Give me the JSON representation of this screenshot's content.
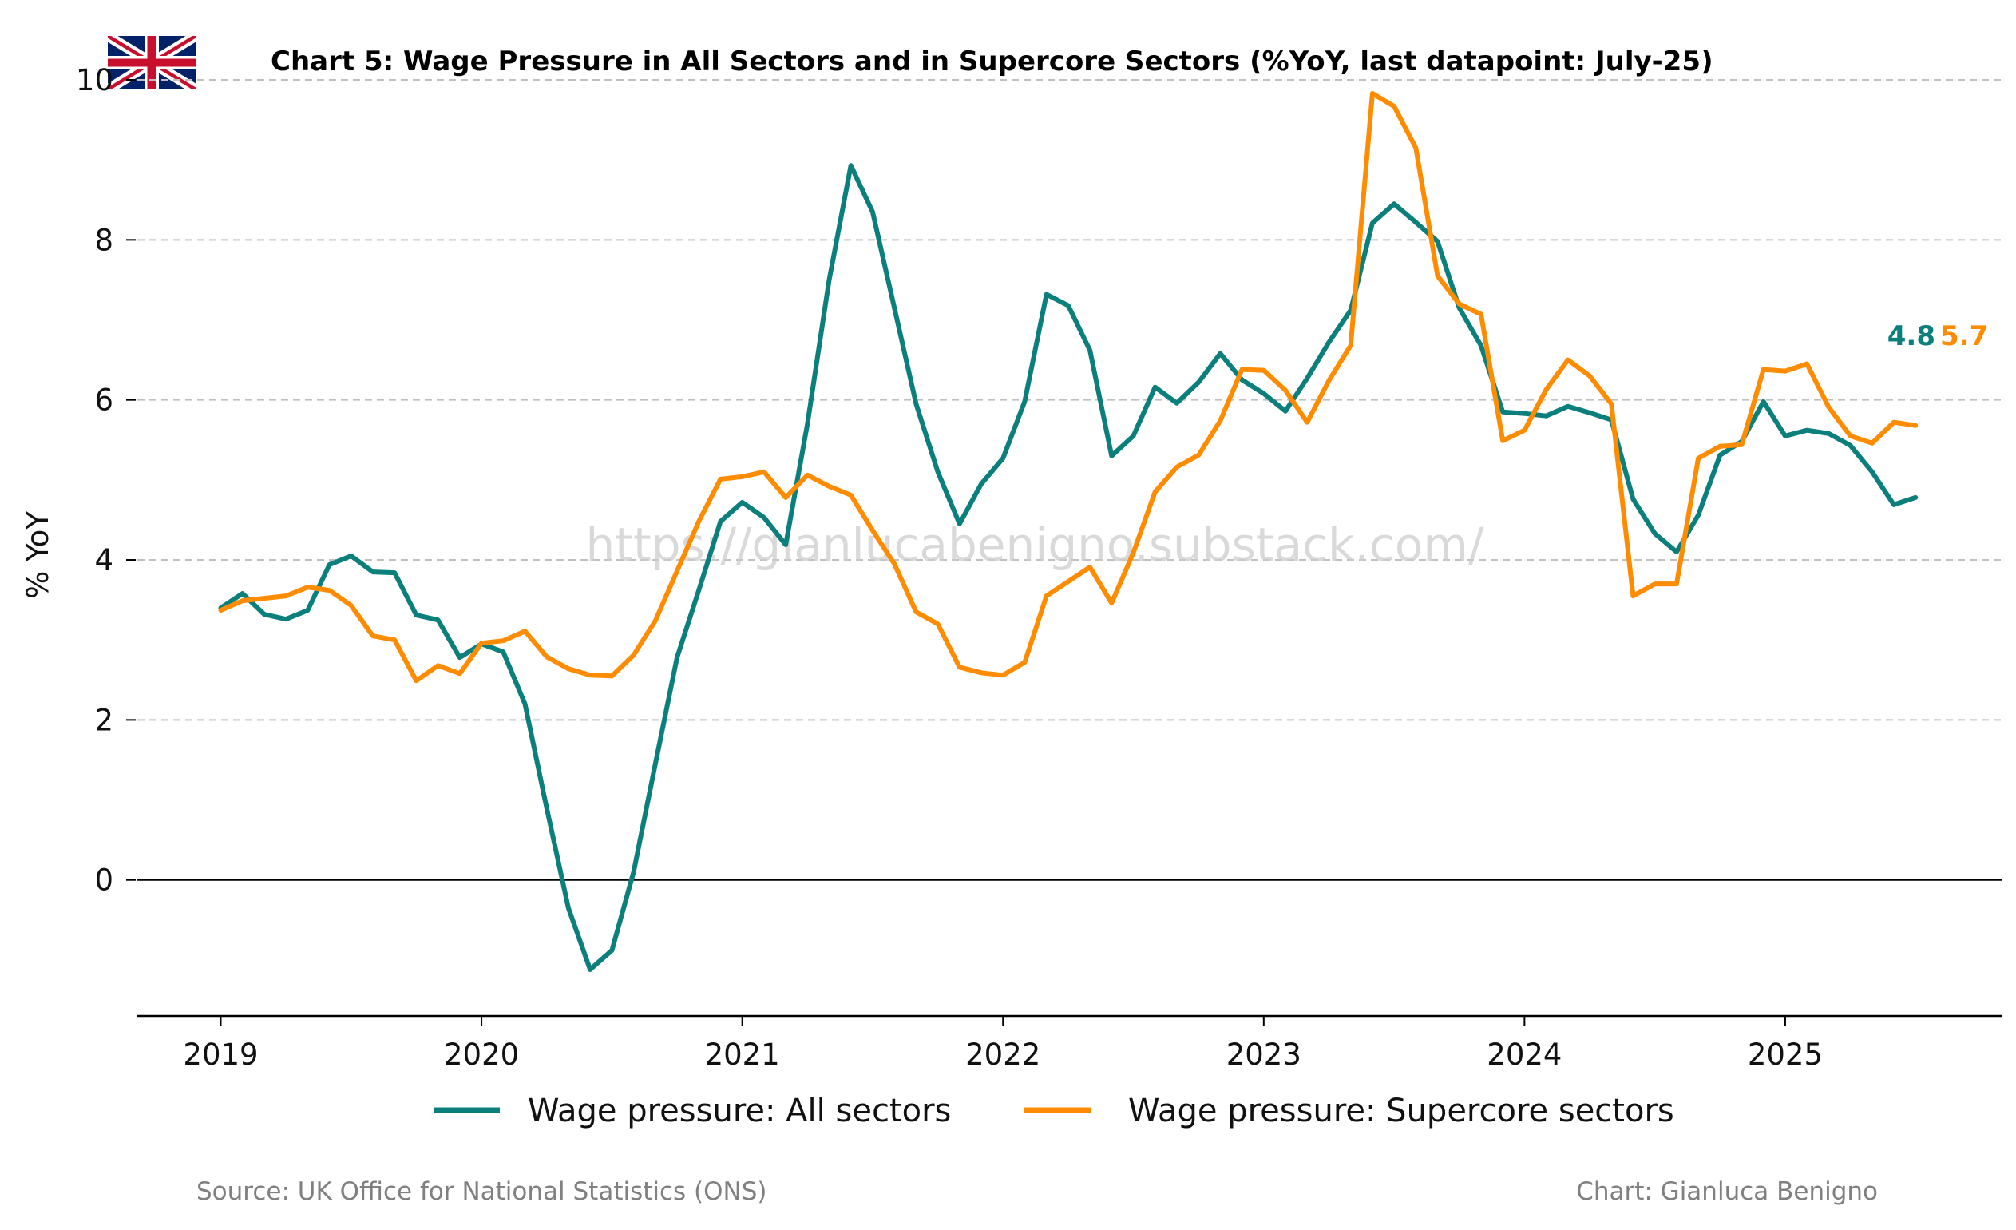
{
  "chart_data": {
    "type": "line",
    "title": "Chart 5: Wage Pressure in All Sectors and in Supercore Sectors (%YoY, last datapoint: July-25)",
    "ylabel": "% YoY",
    "xlabel": "",
    "ylim": [
      -1.7,
      10
    ],
    "yticks": [
      0,
      2,
      4,
      6,
      8,
      10
    ],
    "ytick_labels": [
      "0",
      "2",
      "4",
      "6",
      "8",
      "10"
    ],
    "xlim": [
      2018.68,
      2025.83
    ],
    "xticks": [
      2019,
      2020,
      2021,
      2022,
      2023,
      2024,
      2025
    ],
    "xtick_labels": [
      "2019",
      "2020",
      "2021",
      "2022",
      "2023",
      "2024",
      "2025"
    ],
    "grid": "horizontal-dashed",
    "zero_line": true,
    "legend_position": "bottom-center",
    "x_start": "2019-01",
    "x_end": "2025-07",
    "frequency": "monthly",
    "series": [
      {
        "name": "Wage pressure: All sectors",
        "color": "#0b7f7c",
        "end_label": "4.8",
        "values": [
          3.4,
          3.58,
          3.32,
          3.26,
          3.37,
          3.94,
          4.05,
          3.85,
          3.84,
          3.31,
          3.25,
          2.78,
          2.95,
          2.85,
          2.2,
          0.9,
          -0.35,
          -1.12,
          -0.88,
          0.1,
          1.45,
          2.78,
          3.62,
          4.48,
          4.72,
          4.53,
          4.19,
          5.7,
          7.5,
          8.93,
          8.35,
          7.15,
          5.95,
          5.1,
          4.45,
          4.95,
          5.27,
          5.98,
          7.32,
          7.18,
          6.62,
          5.3,
          5.55,
          6.16,
          5.96,
          6.22,
          6.58,
          6.25,
          6.08,
          5.86,
          6.27,
          6.72,
          7.12,
          8.21,
          8.45,
          8.22,
          7.98,
          7.15,
          6.68,
          5.85,
          5.83,
          5.8,
          5.92,
          5.84,
          5.75,
          4.76,
          4.33,
          4.1,
          4.56,
          5.31,
          5.48,
          5.98,
          5.55,
          5.62,
          5.58,
          5.43,
          5.1,
          4.69,
          4.78
        ]
      },
      {
        "name": "Wage pressure: Supercore sectors",
        "color": "#ff8c00",
        "end_label": "5.7",
        "values": [
          3.37,
          3.49,
          3.52,
          3.55,
          3.66,
          3.62,
          3.43,
          3.05,
          3.0,
          2.49,
          2.68,
          2.58,
          2.96,
          2.99,
          3.11,
          2.79,
          2.64,
          2.56,
          2.55,
          2.81,
          3.24,
          3.86,
          4.48,
          5.01,
          5.04,
          5.1,
          4.78,
          5.06,
          4.92,
          4.81,
          4.37,
          3.95,
          3.35,
          3.2,
          2.66,
          2.59,
          2.56,
          2.72,
          3.55,
          3.73,
          3.91,
          3.46,
          4.09,
          4.85,
          5.16,
          5.31,
          5.74,
          6.38,
          6.37,
          6.12,
          5.72,
          6.24,
          6.68,
          9.83,
          9.67,
          9.15,
          7.55,
          7.2,
          7.07,
          5.49,
          5.62,
          6.13,
          6.5,
          6.3,
          5.95,
          3.55,
          3.7,
          3.7,
          5.27,
          5.42,
          5.44,
          6.38,
          6.36,
          6.45,
          5.91,
          5.55,
          5.46,
          5.72,
          5.68
        ]
      }
    ],
    "annotations": {
      "watermark": "https://gianlucabenigno.substack.com/",
      "source": "Source: UK Office for National Statistics (ONS)",
      "credit": "Chart: Gianluca Benigno"
    }
  },
  "flag": {
    "country": "United Kingdom",
    "icon": "uk-flag-icon",
    "colors": {
      "blue": "#012169",
      "red": "#c8102e",
      "white": "#ffffff"
    }
  },
  "colors": {
    "grid": "#c0c0c0",
    "axis": "#000000",
    "zero_line": "#000000"
  }
}
